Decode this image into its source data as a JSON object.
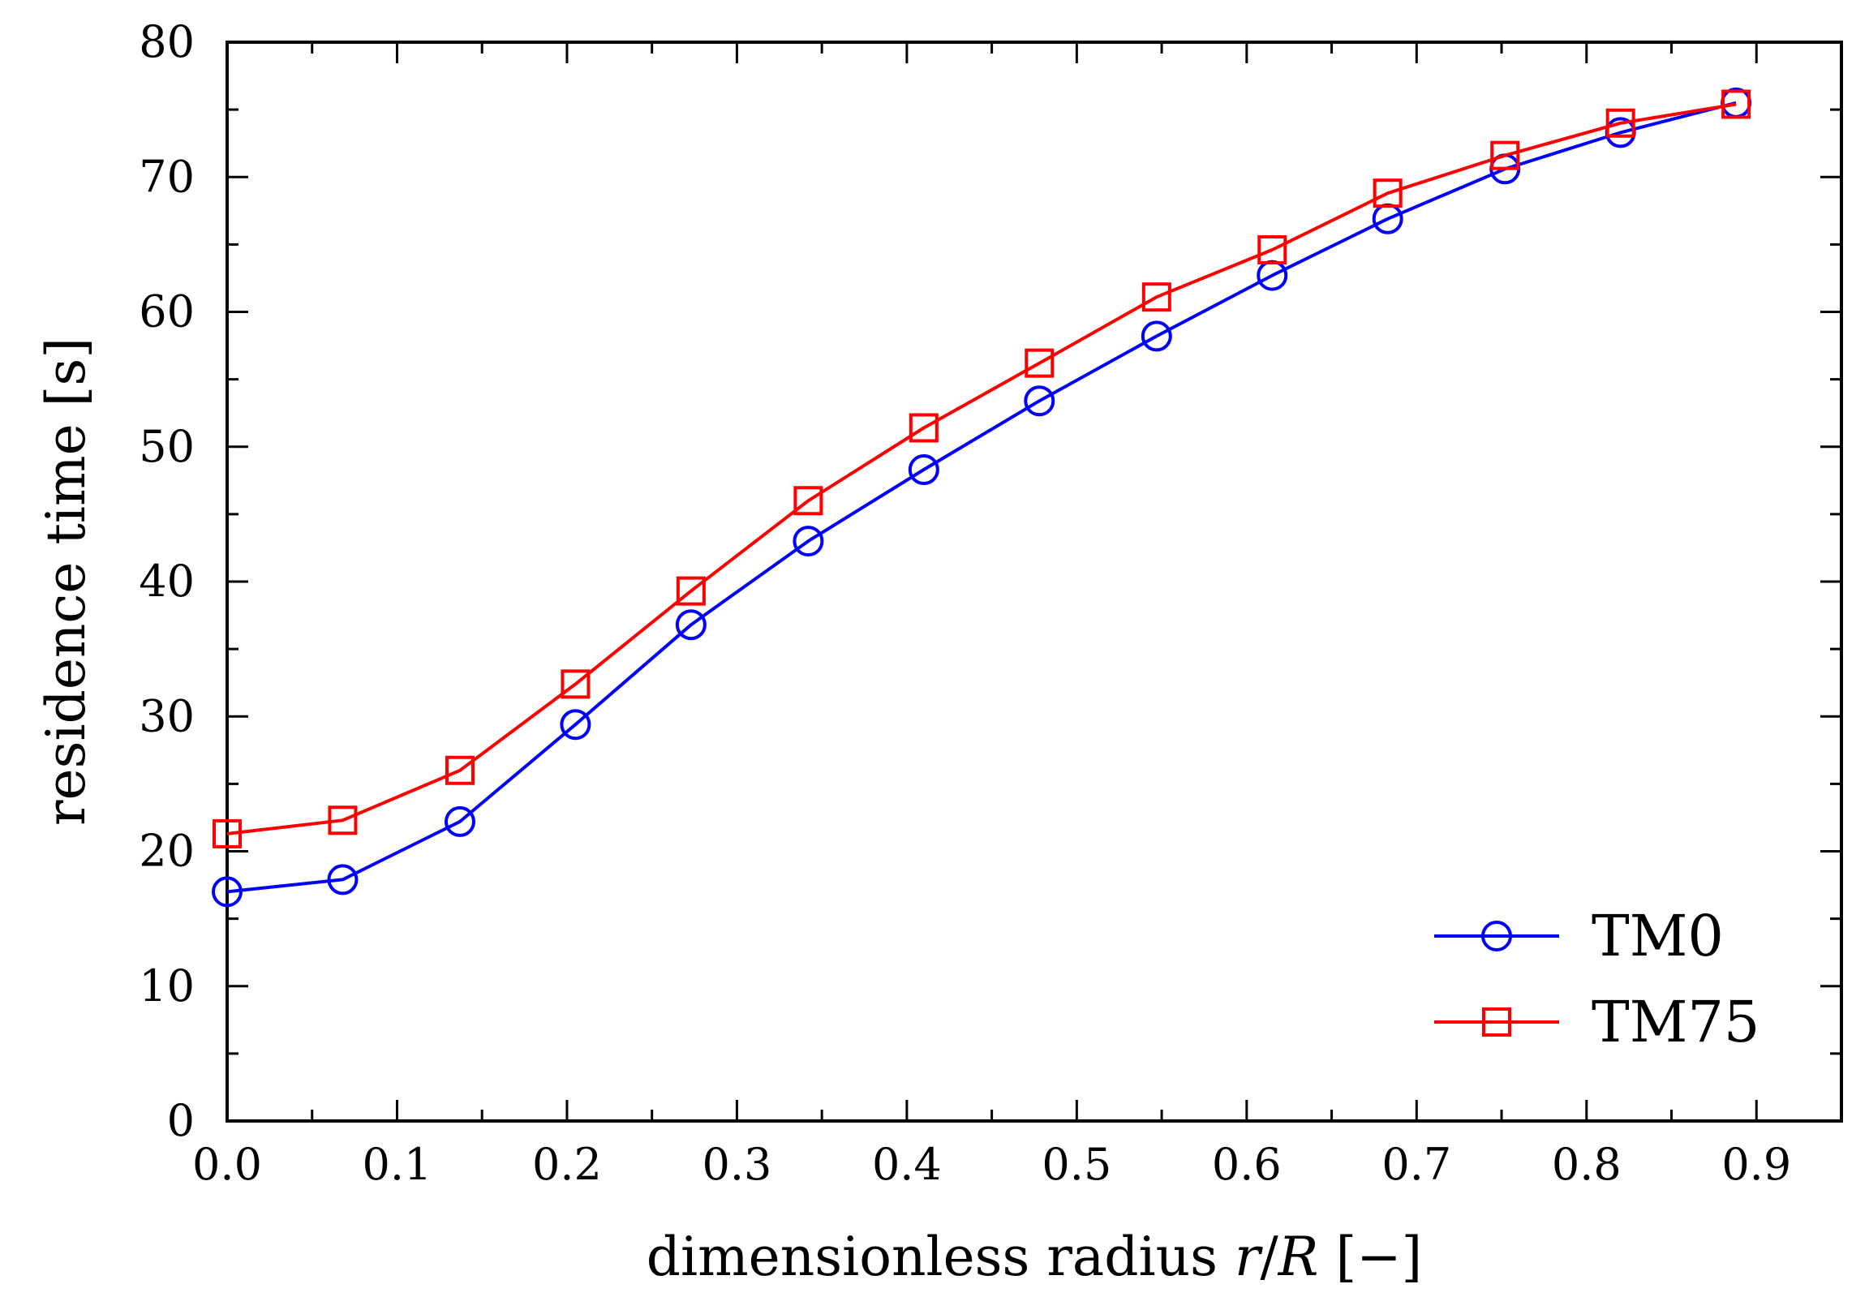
{
  "chart_data": {
    "type": "line",
    "title": "",
    "xlabel": {
      "prefix": "dimensionless radius ",
      "var1": "r",
      "sep": "/",
      "var2": "R",
      "unit": " [−]"
    },
    "ylabel": "residence time [s]",
    "xlim": [
      0.0,
      0.95
    ],
    "ylim": [
      0,
      80
    ],
    "xticks": [
      "0.0",
      "0.1",
      "0.2",
      "0.3",
      "0.4",
      "0.5",
      "0.6",
      "0.7",
      "0.8",
      "0.9"
    ],
    "yticks": [
      "0",
      "10",
      "20",
      "30",
      "40",
      "50",
      "60",
      "70",
      "80"
    ],
    "grid": false,
    "legend_position": "bottom-right",
    "series": [
      {
        "name": "TM0",
        "color": "#0000ff",
        "marker": "circle",
        "x": [
          0.0,
          0.068,
          0.137,
          0.205,
          0.273,
          0.342,
          0.41,
          0.478,
          0.547,
          0.615,
          0.683,
          0.752,
          0.82,
          0.888
        ],
        "y": [
          17.0,
          17.9,
          22.2,
          29.4,
          36.8,
          43.0,
          48.3,
          53.4,
          58.2,
          62.7,
          66.9,
          70.6,
          73.3,
          75.5
        ]
      },
      {
        "name": "TM75",
        "color": "#ff0000",
        "marker": "square",
        "x": [
          0.0,
          0.068,
          0.137,
          0.205,
          0.273,
          0.342,
          0.41,
          0.478,
          0.547,
          0.615,
          0.683,
          0.752,
          0.82,
          0.888
        ],
        "y": [
          21.3,
          22.3,
          26.0,
          32.4,
          39.3,
          46.0,
          51.4,
          56.2,
          61.1,
          64.6,
          68.8,
          71.6,
          74.0,
          75.4
        ]
      }
    ]
  }
}
